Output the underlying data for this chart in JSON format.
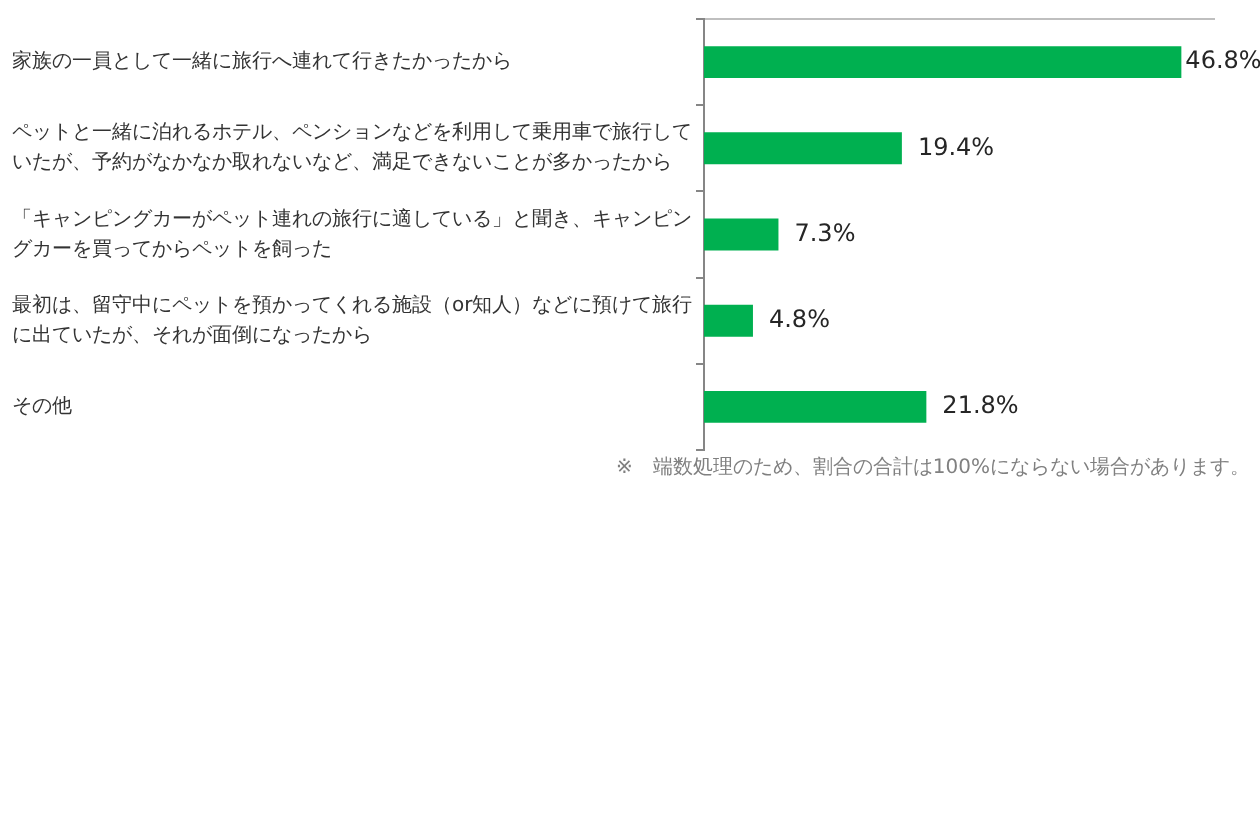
{
  "chart_data": {
    "type": "bar",
    "orientation": "horizontal",
    "categories": [
      "家族の一員として一緒に旅行へ連れて行きたかったから",
      "ペットと一緒に泊れるホテル、ペンションなどを利用して乗用車で旅行していたが、予約がなかなか取れないなど、満足できないことが多かったから",
      "「キャンピングカーがペット連れの旅行に適している」と聞き、キャンピングカーを買ってからペットを飼った",
      "最初は、留守中にペットを預かってくれる施設（or知人）などに預けて旅行に出ていたが、それが面倒になったから",
      "その他"
    ],
    "values": [
      46.8,
      19.4,
      7.3,
      4.8,
      21.8
    ],
    "value_labels": [
      "46.8%",
      "19.4%",
      "7.3%",
      "4.8%",
      "21.8%"
    ],
    "color": "#00b050",
    "xlim": [
      0,
      50
    ],
    "tick_labels": "y",
    "grid": false,
    "legend": false,
    "annotations": [
      "※　端数処理のため、割合の合計は100%にならない場合があります。"
    ]
  }
}
